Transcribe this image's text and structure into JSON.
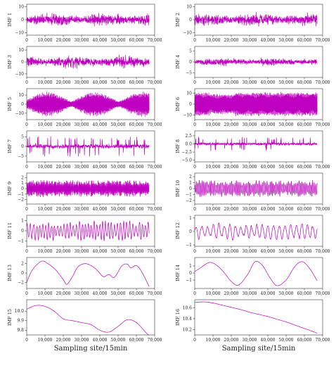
{
  "colors": {
    "line": "#c000c0",
    "axis": "#333333"
  },
  "chart_data": [
    {
      "type": "line",
      "ylabel": "IMF 1",
      "xlim": [
        0,
        70000
      ],
      "ylim": [
        -12,
        12
      ],
      "yticks": [
        -10,
        0,
        10
      ],
      "xticks": [
        0,
        10000,
        20000,
        30000,
        40000,
        50000,
        60000,
        70000
      ],
      "xtick_labels": [
        "0",
        "10,000",
        "20,000",
        "30,000",
        "40,000",
        "50,000",
        "60,000",
        "70,000"
      ],
      "pattern": "noise",
      "amplitude": 8,
      "x_end": 67000,
      "xlabel": ""
    },
    {
      "type": "line",
      "ylabel": "IMF 2",
      "xlim": [
        0,
        70000
      ],
      "ylim": [
        -12,
        12
      ],
      "yticks": [
        -10,
        0,
        10
      ],
      "xticks": [
        0,
        10000,
        20000,
        30000,
        40000,
        50000,
        60000,
        70000
      ],
      "xtick_labels": [
        "0",
        "10,000",
        "20,000",
        "30,000",
        "40,000",
        "50,000",
        "60,000",
        "70,000"
      ],
      "pattern": "noise",
      "amplitude": 8,
      "x_end": 67000,
      "xlabel": ""
    },
    {
      "type": "line",
      "ylabel": "IMF 3",
      "xlim": [
        0,
        70000
      ],
      "ylim": [
        -13,
        13
      ],
      "yticks": [
        -10,
        0,
        10
      ],
      "xticks": [
        0,
        10000,
        20000,
        30000,
        40000,
        50000,
        60000,
        70000
      ],
      "xtick_labels": [
        "0",
        "10,000",
        "20,000",
        "30,000",
        "40,000",
        "50,000",
        "60,000",
        "70,000"
      ],
      "pattern": "noise",
      "amplitude": 8,
      "x_end": 67000,
      "xlabel": ""
    },
    {
      "type": "line",
      "ylabel": "IMF 4",
      "xlim": [
        0,
        70000
      ],
      "ylim": [
        -7,
        7
      ],
      "yticks": [
        -5,
        0,
        5
      ],
      "xticks": [
        0,
        10000,
        20000,
        30000,
        40000,
        50000,
        60000,
        70000
      ],
      "xtick_labels": [
        "0",
        "10,000",
        "20,000",
        "30,000",
        "40,000",
        "50,000",
        "60,000",
        "70,000"
      ],
      "pattern": "noise",
      "amplitude": 3,
      "x_end": 67000,
      "xlabel": ""
    },
    {
      "type": "line",
      "ylabel": "IMF 5",
      "xlim": [
        0,
        70000
      ],
      "ylim": [
        -17,
        17
      ],
      "yticks": [
        -10,
        0,
        10
      ],
      "xticks": [
        0,
        10000,
        20000,
        30000,
        40000,
        50000,
        60000,
        70000
      ],
      "xtick_labels": [
        "0",
        "10,000",
        "20,000",
        "30,000",
        "40,000",
        "50,000",
        "60,000",
        "70,000"
      ],
      "pattern": "envelope",
      "amplitude": 14,
      "x_end": 67000,
      "xlabel": ""
    },
    {
      "type": "line",
      "ylabel": "IMF 6",
      "xlim": [
        0,
        70000
      ],
      "ylim": [
        -14,
        14
      ],
      "yticks": [
        -10,
        0,
        10
      ],
      "xticks": [
        0,
        10000,
        20000,
        30000,
        40000,
        50000,
        60000,
        70000
      ],
      "xtick_labels": [
        "0",
        "10,000",
        "20,000",
        "30,000",
        "40,000",
        "50,000",
        "60,000",
        "70,000"
      ],
      "pattern": "dense",
      "amplitude": 11,
      "x_end": 67000,
      "xlabel": ""
    },
    {
      "type": "line",
      "ylabel": "IMF 7",
      "xlim": [
        0,
        70000
      ],
      "ylim": [
        -8,
        8
      ],
      "yticks": [
        -5,
        0,
        5
      ],
      "xticks": [
        0,
        10000,
        20000,
        30000,
        40000,
        50000,
        60000,
        70000
      ],
      "xtick_labels": [
        "0",
        "10,000",
        "20,000",
        "30,000",
        "40,000",
        "50,000",
        "60,000",
        "70,000"
      ],
      "pattern": "spiky",
      "amplitude": 5,
      "x_end": 67000,
      "xlabel": ""
    },
    {
      "type": "line",
      "ylabel": "IMF 8",
      "xlim": [
        0,
        70000
      ],
      "ylim": [
        -5.5,
        4
      ],
      "yticks": [
        -5.0,
        -2.5,
        0.0,
        2.5
      ],
      "ytick_labels": [
        "−5.0",
        "−2.5",
        "0.0",
        "2.5"
      ],
      "xticks": [
        0,
        10000,
        20000,
        30000,
        40000,
        50000,
        60000,
        70000
      ],
      "xtick_labels": [
        "0",
        "10,000",
        "20,000",
        "30,000",
        "40,000",
        "50,000",
        "60,000",
        "70,000"
      ],
      "pattern": "spiky",
      "amplitude": 2,
      "x_end": 67000,
      "xlabel": ""
    },
    {
      "type": "line",
      "ylabel": "IMF 9",
      "xlim": [
        0,
        70000
      ],
      "ylim": [
        -2.8,
        2.8
      ],
      "yticks": [
        -2,
        -1,
        0,
        1,
        2
      ],
      "xticks": [
        0,
        10000,
        20000,
        30000,
        40000,
        50000,
        60000,
        70000
      ],
      "xtick_labels": [
        "0",
        "10,000",
        "20,000",
        "30,000",
        "40,000",
        "50,000",
        "60,000",
        "70,000"
      ],
      "pattern": "wave",
      "amplitude": 1.4,
      "cycles": 160,
      "x_end": 67000,
      "xlabel": ""
    },
    {
      "type": "line",
      "ylabel": "IMF 10",
      "xlim": [
        0,
        70000
      ],
      "ylim": [
        -2.6,
        2.6
      ],
      "yticks": [
        -2,
        -1,
        0,
        1,
        2
      ],
      "xticks": [
        0,
        10000,
        20000,
        30000,
        40000,
        50000,
        60000,
        70000
      ],
      "xtick_labels": [
        "0",
        "10,000",
        "20,000",
        "30,000",
        "40,000",
        "50,000",
        "60,000",
        "70,000"
      ],
      "pattern": "wave",
      "amplitude": 1.3,
      "cycles": 80,
      "x_end": 67000,
      "xlabel": ""
    },
    {
      "type": "line",
      "ylabel": "IMF 11",
      "xlim": [
        0,
        70000
      ],
      "ylim": [
        -1.5,
        1.5
      ],
      "yticks": [
        -1,
        0,
        1
      ],
      "xticks": [
        0,
        10000,
        20000,
        30000,
        40000,
        50000,
        60000,
        70000
      ],
      "xtick_labels": [
        "0",
        "10,000",
        "20,000",
        "30,000",
        "40,000",
        "50,000",
        "60,000",
        "70,000"
      ],
      "pattern": "wave",
      "amplitude": 0.9,
      "cycles": 40,
      "x_end": 67000,
      "xlabel": ""
    },
    {
      "type": "line",
      "ylabel": "IMF 12",
      "xlim": [
        0,
        70000
      ],
      "ylim": [
        -1.1,
        1.2
      ],
      "yticks": [
        -1,
        0,
        1
      ],
      "xticks": [
        0,
        10000,
        20000,
        30000,
        40000,
        50000,
        60000,
        70000
      ],
      "xtick_labels": [
        "0",
        "10,000",
        "20,000",
        "30,000",
        "40,000",
        "50,000",
        "60,000",
        "70,000"
      ],
      "pattern": "wave",
      "amplitude": 0.6,
      "cycles": 22,
      "x_end": 67000,
      "xlabel": ""
    },
    {
      "type": "line",
      "ylabel": "IMF 13",
      "xlim": [
        0,
        70000
      ],
      "ylim": [
        -3.3,
        3.3
      ],
      "yticks": [
        -2,
        0,
        2
      ],
      "xticks": [
        0,
        10000,
        20000,
        30000,
        40000,
        50000,
        60000,
        70000
      ],
      "xtick_labels": [
        "0",
        "10,000",
        "20,000",
        "30,000",
        "40,000",
        "50,000",
        "60,000",
        "70,000"
      ],
      "x": [
        0,
        3000,
        8000,
        12000,
        16000,
        20000,
        22000,
        25000,
        28000,
        32000,
        36000,
        39000,
        42000,
        45000,
        48000,
        52000,
        55000,
        57000,
        60000,
        63000,
        67000
      ],
      "y": [
        -2.0,
        0.6,
        2.5,
        1.9,
        0.6,
        -1.4,
        -2.4,
        -0.8,
        1.3,
        2.0,
        1.4,
        0.4,
        -0.8,
        -0.3,
        -0.9,
        1.5,
        1.9,
        1.1,
        1.6,
        0.2,
        -2.9
      ],
      "xlabel": ""
    },
    {
      "type": "line",
      "ylabel": "IMF 14",
      "xlim": [
        0,
        70000
      ],
      "ylim": [
        -2.2,
        2.2
      ],
      "yticks": [
        -1,
        0,
        1
      ],
      "xticks": [
        0,
        10000,
        20000,
        30000,
        40000,
        50000,
        60000,
        70000
      ],
      "xtick_labels": [
        "0",
        "10,000",
        "20,000",
        "30,000",
        "40,000",
        "50,000",
        "60,000",
        "70,000"
      ],
      "x": [
        0,
        3000,
        8000,
        12000,
        16000,
        20000,
        24000,
        29000,
        33000,
        37000,
        41000,
        45000,
        50000,
        55000,
        59000,
        63000,
        67000
      ],
      "y": [
        0.2,
        0.7,
        1.5,
        1.1,
        0.1,
        -1.2,
        -1.7,
        -0.2,
        1.6,
        1.1,
        -0.6,
        -1.8,
        -1.0,
        1.0,
        1.6,
        0.6,
        -1.1
      ],
      "xlabel": ""
    },
    {
      "type": "line",
      "ylabel": "IMF 15",
      "xlim": [
        0,
        70000
      ],
      "ylim": [
        9.75,
        10.12
      ],
      "yticks": [
        9.8,
        9.9,
        10.0
      ],
      "ytick_labels": [
        "9.8",
        "9.9",
        "10.0"
      ],
      "xticks": [
        0,
        10000,
        20000,
        30000,
        40000,
        50000,
        60000,
        70000
      ],
      "xtick_labels": [
        "0",
        "10,000",
        "20,000",
        "30,000",
        "40,000",
        "50,000",
        "60,000",
        "70,000"
      ],
      "x": [
        0,
        5000,
        10000,
        15000,
        20000,
        25000,
        30000,
        35000,
        40000,
        45000,
        50000,
        55000,
        60000,
        65000,
        67000
      ],
      "y": [
        10.02,
        10.06,
        10.05,
        10.0,
        9.92,
        9.9,
        9.88,
        9.86,
        9.8,
        9.78,
        9.84,
        9.91,
        9.88,
        9.78,
        9.74
      ],
      "xlabel": "Sampling site/15min"
    },
    {
      "type": "line",
      "ylabel": "IMF 16",
      "xlim": [
        0,
        70000
      ],
      "ylim": [
        10.1,
        10.75
      ],
      "yticks": [
        10.2,
        10.4,
        10.6
      ],
      "ytick_labels": [
        "10.2",
        "10.4",
        "10.6"
      ],
      "xticks": [
        0,
        10000,
        20000,
        30000,
        40000,
        50000,
        60000,
        70000
      ],
      "xtick_labels": [
        "0",
        "10,000",
        "20,000",
        "30,000",
        "40,000",
        "50,000",
        "60,000",
        "70,000"
      ],
      "x": [
        0,
        5000,
        10000,
        15000,
        20000,
        25000,
        30000,
        35000,
        40000,
        45000,
        50000,
        55000,
        60000,
        65000,
        67000
      ],
      "y": [
        10.7,
        10.71,
        10.69,
        10.65,
        10.61,
        10.57,
        10.52,
        10.48,
        10.44,
        10.39,
        10.34,
        10.28,
        10.22,
        10.16,
        10.13
      ],
      "xlabel": "Sampling site/15min"
    }
  ]
}
